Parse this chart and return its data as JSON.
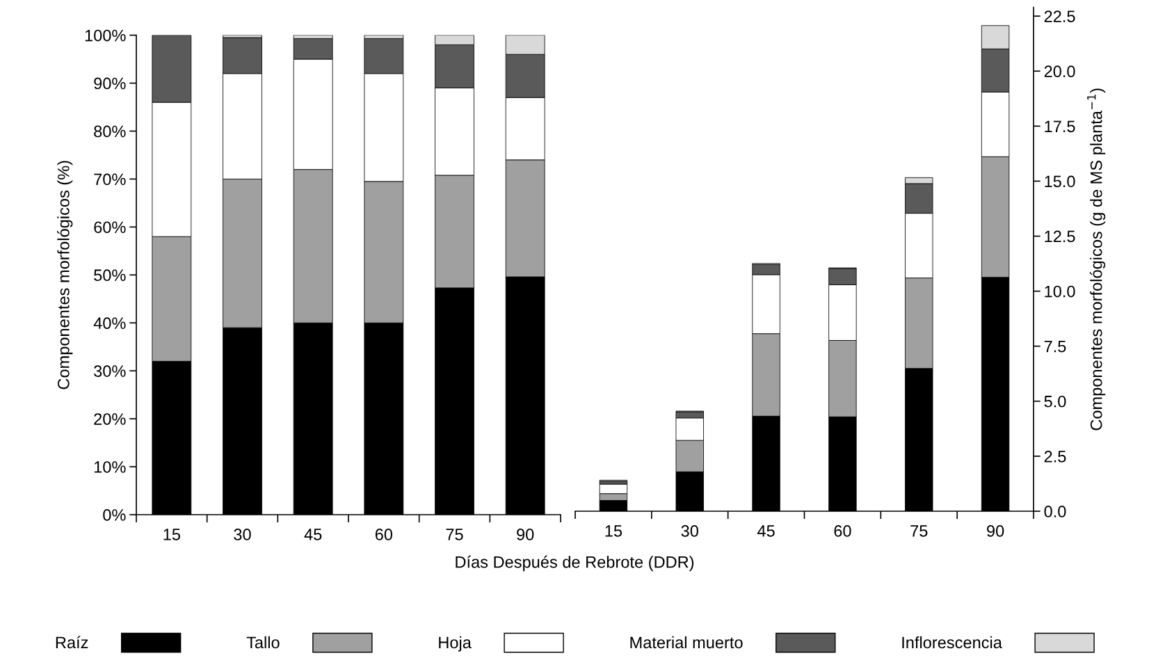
{
  "chart_data": [
    {
      "type": "bar",
      "stacked": true,
      "ylabel": "Componentes morfológicos (%)",
      "xlabel": "Días Después de Rebrote (DDR)",
      "legend": "bottom",
      "categories": [
        "15",
        "30",
        "45",
        "60",
        "75",
        "90"
      ],
      "ylim": [
        0,
        100
      ],
      "yticks": [
        {
          "value": 0,
          "label": "0%"
        },
        {
          "value": 10,
          "label": "10%"
        },
        {
          "value": 20,
          "label": "20%"
        },
        {
          "value": 30,
          "label": "30%"
        },
        {
          "value": 40,
          "label": "40%"
        },
        {
          "value": 50,
          "label": "50%"
        },
        {
          "value": 60,
          "label": "60%"
        },
        {
          "value": 70,
          "label": "70%"
        },
        {
          "value": 80,
          "label": "80%"
        },
        {
          "value": 90,
          "label": "90%"
        },
        {
          "value": 100,
          "label": "100%"
        }
      ],
      "series": [
        {
          "name": "Raíz",
          "color": "#000000",
          "values": [
            32,
            39,
            40,
            40,
            47.3,
            49.6
          ]
        },
        {
          "name": "Tallo",
          "color": "#a0a0a0",
          "values": [
            26,
            31,
            32,
            29.5,
            23.5,
            24.4
          ]
        },
        {
          "name": "Hoja",
          "color": "#ffffff",
          "values": [
            28,
            22,
            23,
            22.5,
            18.2,
            13
          ]
        },
        {
          "name": "Material muerto",
          "color": "#5a5a5a",
          "values": [
            14,
            7.5,
            4.3,
            7.3,
            9,
            9
          ]
        },
        {
          "name": "Inflorescencia",
          "color": "#d9d9d9",
          "values": [
            null,
            0.5,
            0.7,
            0.7,
            2,
            4
          ]
        }
      ]
    },
    {
      "type": "bar",
      "stacked": true,
      "ylabel": "Componentes morfológicos (g de MS planta$^{−1}$)",
      "categories": [
        "15",
        "30",
        "45",
        "60",
        "75",
        "90"
      ],
      "ylim": [
        0,
        22.9
      ],
      "yticks": [
        {
          "value": 0,
          "label": "0.0"
        },
        {
          "value": 2.5,
          "label": "2.5"
        },
        {
          "value": 5,
          "label": "5.0"
        },
        {
          "value": 7.5,
          "label": "7.5"
        },
        {
          "value": 10,
          "label": "10.0"
        },
        {
          "value": 12.5,
          "label": "12.5"
        },
        {
          "value": 15,
          "label": "15.0"
        },
        {
          "value": 17.5,
          "label": "17.5"
        },
        {
          "value": 20,
          "label": "20.0"
        },
        {
          "value": 22.5,
          "label": "22.5"
        }
      ],
      "series": [
        {
          "color": "#000000",
          "values": [
            0.49,
            1.79,
            4.32,
            4.29,
            6.49,
            10.63
          ]
        },
        {
          "color": "#a0a0a0",
          "values": [
            0.31,
            1.43,
            3.75,
            3.47,
            4.11,
            5.48
          ]
        },
        {
          "color": "#ffffff",
          "values": [
            0.43,
            1.02,
            2.68,
            2.53,
            2.94,
            2.94
          ]
        },
        {
          "color": "#5a5a5a",
          "values": [
            0.13,
            0.28,
            0.46,
            0.74,
            1.35,
            1.96
          ]
        },
        {
          "color": "#d9d9d9",
          "values": [
            0.05,
            0.03,
            0.05,
            0.03,
            0.27,
            1.06
          ]
        }
      ]
    }
  ]
}
